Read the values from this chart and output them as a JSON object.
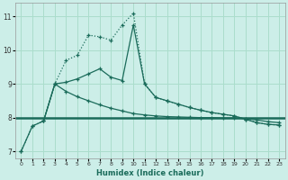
{
  "xlabel": "Humidex (Indice chaleur)",
  "bg_color": "#cceee8",
  "grid_color": "#aaddcc",
  "line_color": "#1a6b5a",
  "xlim": [
    -0.5,
    23.5
  ],
  "ylim": [
    6.8,
    11.4
  ],
  "yticks": [
    7,
    8,
    9,
    10,
    11
  ],
  "xticks": [
    0,
    1,
    2,
    3,
    4,
    5,
    6,
    7,
    8,
    9,
    10,
    11,
    12,
    13,
    14,
    15,
    16,
    17,
    18,
    19,
    20,
    21,
    22,
    23
  ],
  "curve1_x": [
    0,
    1,
    2,
    3,
    4,
    5,
    6,
    7,
    8,
    9,
    10,
    11,
    12,
    13,
    14,
    15,
    16,
    17,
    18,
    19,
    20,
    21,
    22,
    23
  ],
  "curve1_y": [
    7.0,
    7.75,
    7.9,
    9.0,
    9.7,
    9.85,
    10.45,
    10.4,
    10.3,
    10.75,
    11.1,
    9.0,
    8.6,
    8.5,
    8.4,
    8.3,
    8.22,
    8.15,
    8.1,
    8.05,
    7.95,
    7.85,
    7.8,
    7.78
  ],
  "curve2_x": [
    0,
    1,
    2,
    3,
    4,
    5,
    6,
    7,
    8,
    9,
    10,
    11,
    12,
    13,
    14,
    15,
    16,
    17,
    18,
    19,
    20,
    21,
    22,
    23
  ],
  "curve2_y": [
    7.0,
    7.75,
    7.9,
    9.0,
    9.05,
    9.15,
    9.3,
    9.45,
    9.2,
    9.1,
    10.75,
    9.0,
    8.6,
    8.5,
    8.4,
    8.3,
    8.22,
    8.15,
    8.1,
    8.05,
    7.95,
    7.85,
    7.8,
    7.78
  ],
  "hline_y": 8.0,
  "curve3_x": [
    2,
    3,
    4,
    5,
    6,
    7,
    8,
    9,
    10,
    11,
    12,
    13,
    14,
    15,
    16,
    17,
    18,
    19,
    20,
    21,
    22,
    23
  ],
  "curve3_y": [
    7.9,
    9.0,
    8.78,
    8.62,
    8.5,
    8.38,
    8.28,
    8.2,
    8.12,
    8.08,
    8.05,
    8.03,
    8.02,
    8.01,
    8.0,
    8.0,
    7.99,
    7.99,
    7.97,
    7.93,
    7.88,
    7.85
  ]
}
